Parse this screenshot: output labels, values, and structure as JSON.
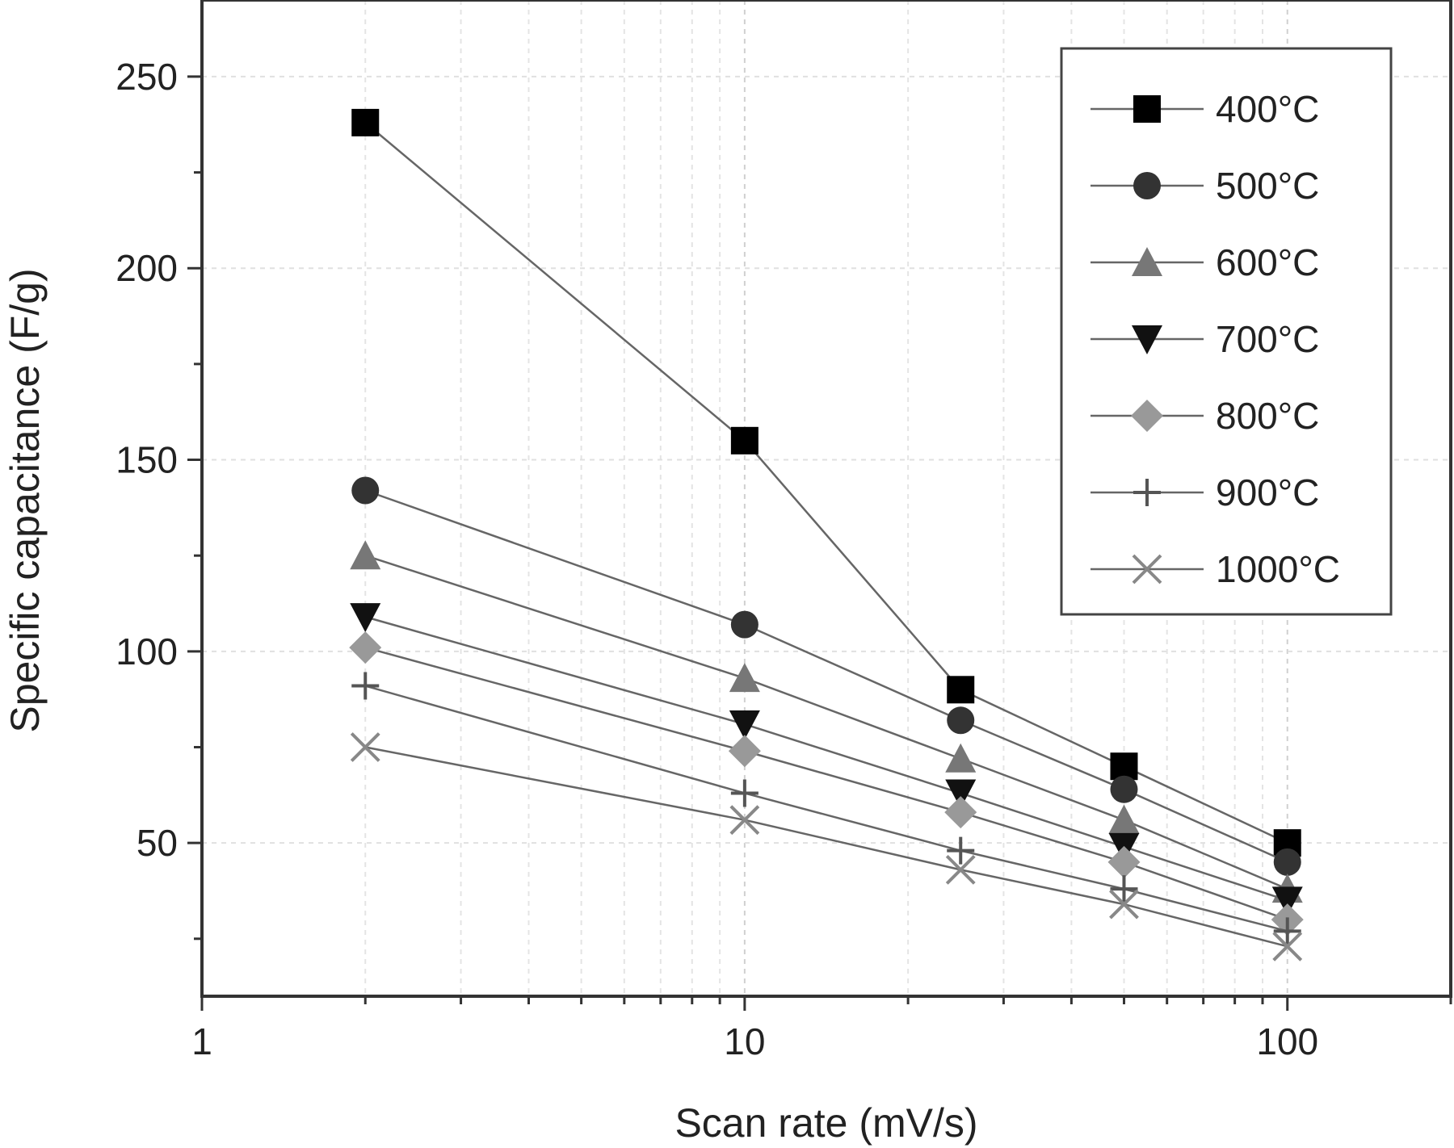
{
  "chart_data": {
    "type": "line",
    "title": "",
    "xlabel": "Scan rate (mV/s)",
    "ylabel": "Specific capacitance (F/g)",
    "xscale": "log",
    "xlim": [
      1,
      200
    ],
    "ylim": [
      10,
      270
    ],
    "xticks": [
      1,
      10,
      100
    ],
    "xtick_labels": [
      "1",
      "10",
      "100"
    ],
    "yticks": [
      50,
      100,
      150,
      200,
      250
    ],
    "ytick_labels": [
      "50",
      "100",
      "150",
      "200",
      "250"
    ],
    "grid": true,
    "legend_position": "top-right",
    "x": [
      2,
      10,
      25,
      50,
      100
    ],
    "series": [
      {
        "name": "400°C",
        "marker": "square",
        "color": "#000000",
        "values": [
          238,
          155,
          90,
          70,
          50
        ]
      },
      {
        "name": "500°C",
        "marker": "circle",
        "color": "#333333",
        "values": [
          142,
          107,
          82,
          64,
          45
        ]
      },
      {
        "name": "600°C",
        "marker": "triangle-up",
        "color": "#777777",
        "values": [
          125,
          93,
          72,
          56,
          38
        ]
      },
      {
        "name": "700°C",
        "marker": "triangle-down",
        "color": "#111111",
        "values": [
          109,
          81,
          63,
          49,
          35
        ]
      },
      {
        "name": "800°C",
        "marker": "diamond",
        "color": "#999999",
        "values": [
          101,
          74,
          58,
          45,
          30
        ]
      },
      {
        "name": "900°C",
        "marker": "plus",
        "color": "#555555",
        "values": [
          91,
          63,
          48,
          38,
          27
        ]
      },
      {
        "name": "1000°C",
        "marker": "cross",
        "color": "#888888",
        "values": [
          75,
          56,
          43,
          34,
          23
        ]
      }
    ]
  }
}
